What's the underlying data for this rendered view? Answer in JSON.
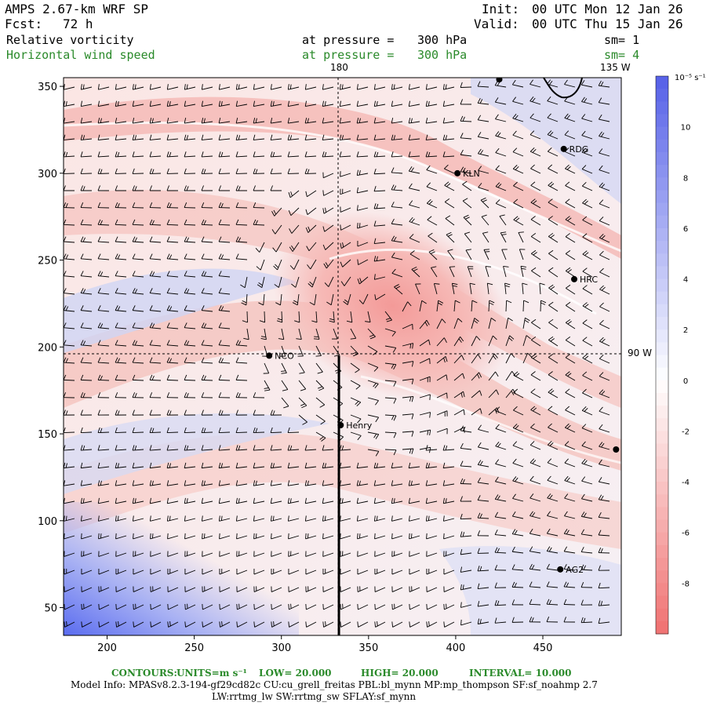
{
  "header": {
    "model_title": "AMPS 2.67-km WRF SP",
    "fcst_label": "Fcst:",
    "fcst_value": "72 h",
    "init_label": "Init:",
    "init_value": "00 UTC Mon 12 Jan 26",
    "valid_label": "Valid:",
    "valid_value": "00 UTC Thu 15 Jan 26"
  },
  "fields": [
    {
      "name": "Relative vorticity",
      "pressure_label": "at pressure =",
      "pressure_value": "300 hPa",
      "smooth": "sm= 1",
      "color": "#000000"
    },
    {
      "name": "Horizontal wind speed",
      "pressure_label": "at pressure =",
      "pressure_value": "300 hPa",
      "smooth": "sm= 4",
      "color": "#2a8a2a"
    }
  ],
  "map": {
    "meridian_labels": [
      "180",
      "135 W",
      "90 W"
    ],
    "x_ticks": [
      200,
      250,
      300,
      350,
      400,
      450
    ],
    "y_ticks": [
      50,
      100,
      150,
      200,
      250,
      300,
      350
    ],
    "x_range": [
      175,
      495
    ],
    "y_range": [
      34,
      355
    ],
    "stations": [
      {
        "label": "RDG",
        "x": 462,
        "y": 314
      },
      {
        "label": "KLN",
        "x": 401,
        "y": 300
      },
      {
        "label": "HRC",
        "x": 468,
        "y": 239
      },
      {
        "label": "NCO",
        "x": 293,
        "y": 195
      },
      {
        "label": "Henry",
        "x": 334,
        "y": 155
      },
      {
        "label": "AG2",
        "x": 460,
        "y": 72
      },
      {
        "label": "",
        "x": 425,
        "y": 354
      },
      {
        "label": "",
        "x": 492,
        "y": 141
      }
    ],
    "cross_section_x": 333,
    "cross_section_y_top": 195
  },
  "colorbar": {
    "unit_label": "10⁻⁵ s⁻¹",
    "ticks": [
      "10",
      "8",
      "6",
      "4",
      "2",
      "0",
      "-2",
      "-4",
      "-6",
      "-8"
    ],
    "tick_values": [
      10,
      8,
      6,
      4,
      2,
      0,
      -2,
      -4,
      -6,
      -8
    ],
    "range": [
      -10,
      12
    ],
    "max_color": "#5560e8",
    "min_color": "#f07070"
  },
  "footer": {
    "contours_label": "CONTOURS:",
    "units": "UNITS=m s⁻¹",
    "low": "LOW= 20.000",
    "high": "HIGH= 20.000",
    "interval": "INTERVAL= 10.000",
    "model_info": "Model Info: MPASv8.2.3-194-gf29cd82c CU:cu_grell_freitas PBL:bl_mynn MP:mp_thompson SF:sf_noahmp 2.7",
    "model_info_2": "LW:rrtmg_lw SW:rrtmg_sw SFLAY:sf_mynn"
  }
}
